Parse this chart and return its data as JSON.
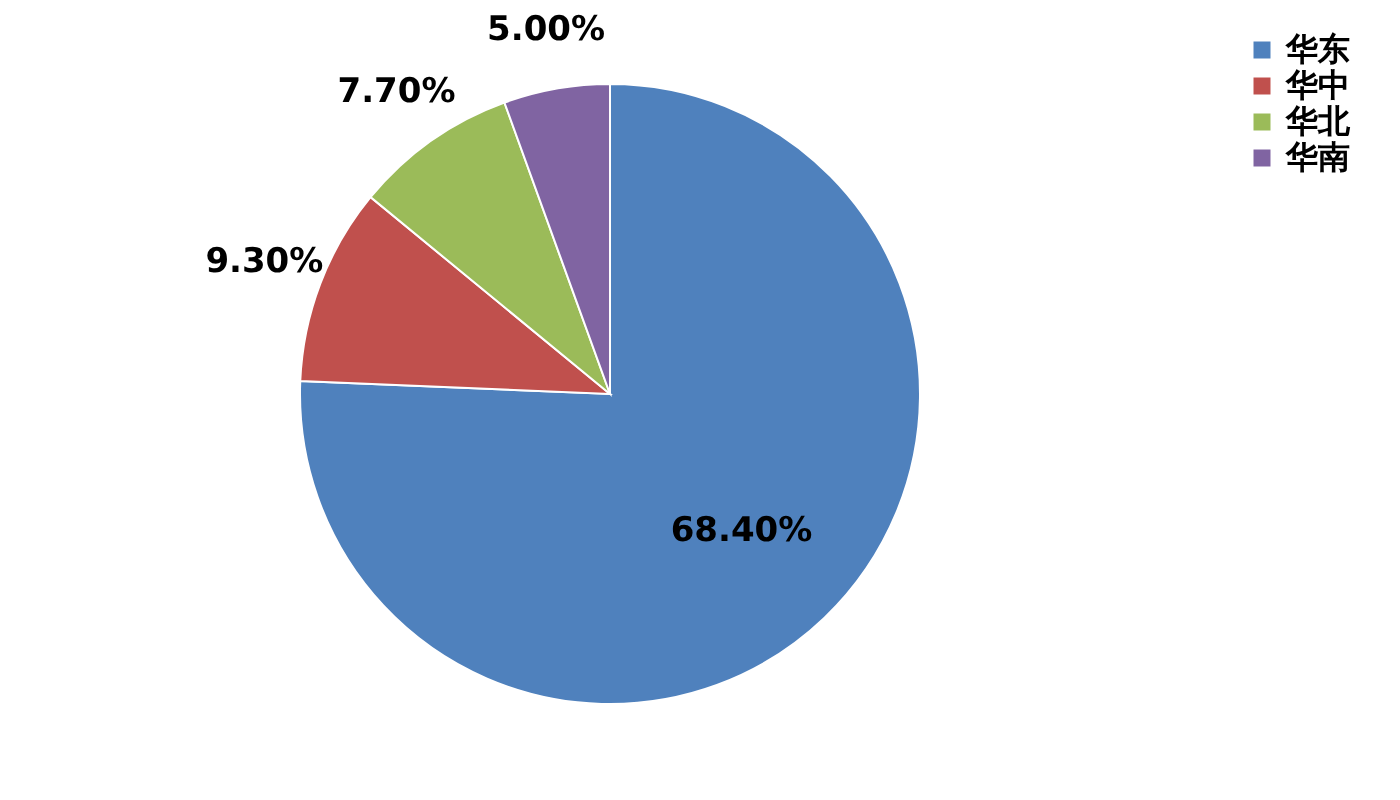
{
  "chart_data": {
    "type": "pie",
    "categories": [
      "华东",
      "华中",
      "华北",
      "华南"
    ],
    "values": [
      68.4,
      9.3,
      7.7,
      5.0
    ],
    "value_labels": [
      "68.40%",
      "9.30%",
      "7.70%",
      "5.00%"
    ],
    "colors": [
      "#4f81bd",
      "#c0504d",
      "#9bbb59",
      "#8064a2"
    ],
    "legend": "right"
  }
}
